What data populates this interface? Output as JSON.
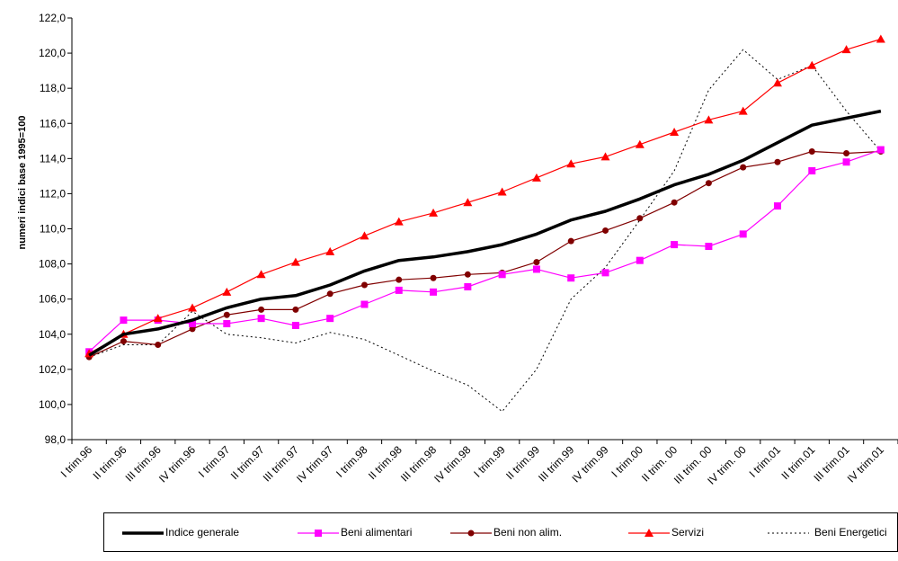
{
  "chart_data": {
    "type": "line",
    "ylabel": "numeri indici base 1995=100",
    "ylim": [
      98,
      122
    ],
    "ytick_step": 2,
    "ytick_labels": [
      "98,0",
      "100,0",
      "102,0",
      "104,0",
      "106,0",
      "108,0",
      "110,0",
      "112,0",
      "114,0",
      "116,0",
      "118,0",
      "120,0",
      "122,0"
    ],
    "grid": false,
    "legend_position": "bottom",
    "categories": [
      "I trim.96",
      "II trim.96",
      "III trim.96",
      "IV trim.96",
      "I trim.97",
      "II trim.97",
      "III trim.97",
      "IV trim.97",
      "I trim.98",
      "II trim.98",
      "III trim.98",
      "IV trim.98",
      "I trim.99",
      "II trim.99",
      "III trim.99",
      "IV trim.99",
      "I trim.00",
      "II trim. 00",
      "III trim. 00",
      "IV trim. 00",
      "I trim.01",
      "II trim.01",
      "III trim.01",
      "IV trim.01"
    ],
    "series": [
      {
        "name": "Indice generale",
        "color": "#000000",
        "style": "thick",
        "marker": "none",
        "values": [
          102.8,
          104.0,
          104.3,
          104.8,
          105.5,
          106.0,
          106.2,
          106.8,
          107.6,
          108.2,
          108.4,
          108.7,
          109.1,
          109.7,
          110.5,
          111.0,
          111.7,
          112.5,
          113.1,
          113.9,
          114.9,
          115.9,
          116.3,
          116.7
        ]
      },
      {
        "name": "Beni alimentari",
        "color": "#ff00ff",
        "style": "solid",
        "marker": "square",
        "values": [
          103.0,
          104.8,
          104.8,
          104.6,
          104.6,
          104.9,
          104.5,
          104.9,
          105.7,
          106.5,
          106.4,
          106.7,
          107.4,
          107.7,
          107.2,
          107.5,
          108.2,
          109.1,
          109.0,
          109.7,
          111.3,
          113.3,
          113.8,
          114.5
        ]
      },
      {
        "name": "Beni non alim.",
        "color": "#800000",
        "style": "solid",
        "marker": "circle",
        "values": [
          102.7,
          103.6,
          103.4,
          104.3,
          105.1,
          105.4,
          105.4,
          106.3,
          106.8,
          107.1,
          107.2,
          107.4,
          107.5,
          108.1,
          109.3,
          109.9,
          110.6,
          111.5,
          112.6,
          113.5,
          113.8,
          114.4,
          114.3,
          114.4
        ]
      },
      {
        "name": "Servizi",
        "color": "#ff0000",
        "style": "solid",
        "marker": "triangle",
        "values": [
          102.9,
          104.0,
          104.9,
          105.5,
          106.4,
          107.4,
          108.1,
          108.7,
          109.6,
          110.4,
          110.9,
          111.5,
          112.1,
          112.9,
          113.7,
          114.1,
          114.8,
          115.5,
          116.2,
          116.7,
          118.3,
          119.3,
          120.2,
          120.8
        ]
      },
      {
        "name": "Beni Energetici",
        "color": "#000000",
        "style": "dotted",
        "marker": "none",
        "values": [
          102.7,
          103.4,
          103.4,
          105.3,
          104.0,
          103.8,
          103.5,
          104.1,
          103.7,
          102.8,
          101.9,
          101.1,
          99.6,
          102.0,
          106.0,
          107.8,
          110.5,
          113.3,
          117.9,
          120.2,
          118.5,
          119.3,
          116.7,
          114.4
        ]
      }
    ]
  }
}
